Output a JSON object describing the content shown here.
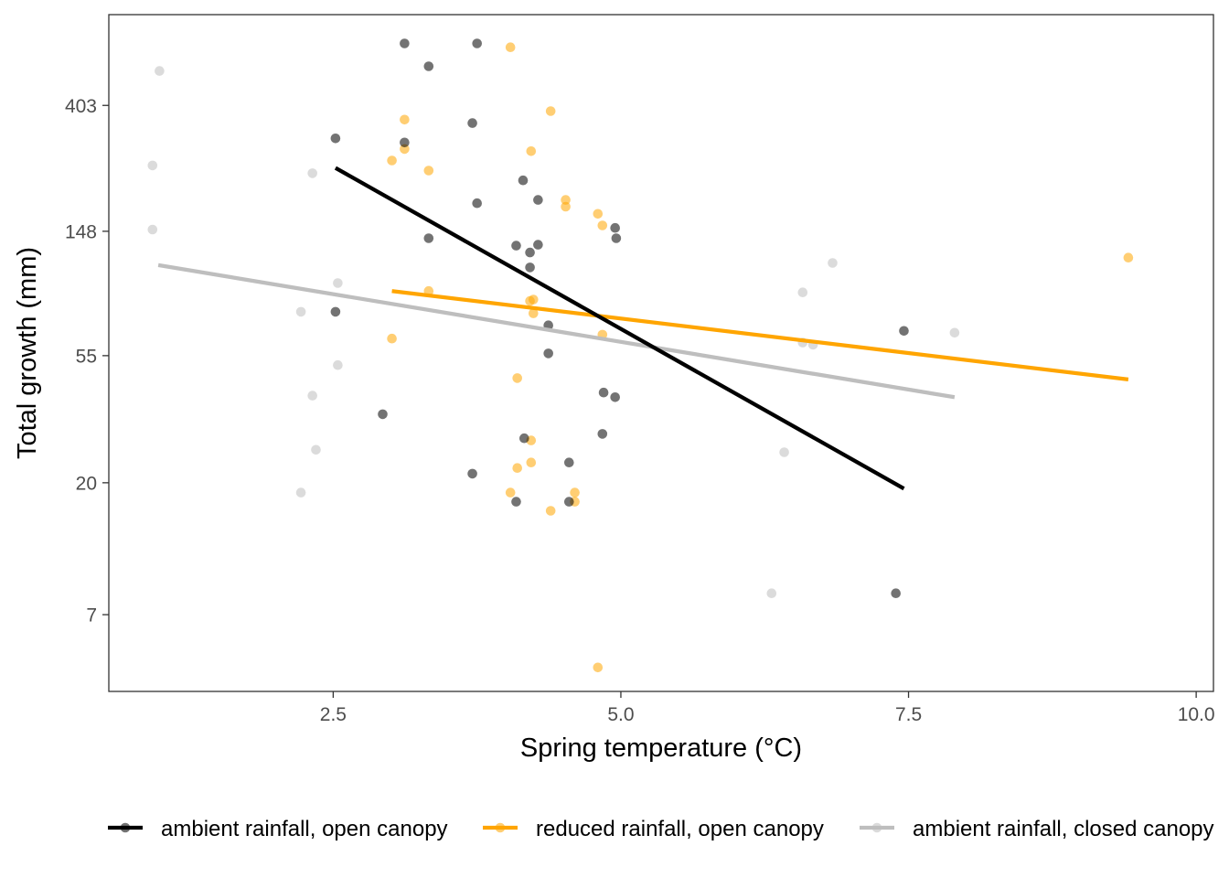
{
  "chart_data": {
    "type": "scatter",
    "xlabel": "Spring temperature (°C)",
    "ylabel": "Total growth (mm)",
    "x_ticks": [
      2.5,
      5.0,
      7.5,
      10.0
    ],
    "x_tick_labels": [
      "2.5",
      "5.0",
      "7.5",
      "10.0"
    ],
    "y_scale": "log",
    "y_ticks": [
      7,
      20,
      55,
      148,
      403
    ],
    "y_tick_labels": [
      "7",
      "20",
      "55",
      "148",
      "403"
    ],
    "xlim": [
      0.55,
      10.15
    ],
    "ylim": [
      3.8,
      830
    ],
    "grid": false,
    "legend_position": "bottom",
    "series": [
      {
        "name": "ambient rainfall, open canopy",
        "color": "#000000",
        "fit_line": [
          [
            2.52,
            245
          ],
          [
            7.46,
            19.1
          ]
        ],
        "points": [
          [
            3.12,
            660
          ],
          [
            3.75,
            660
          ],
          [
            3.33,
            550
          ],
          [
            3.71,
            350
          ],
          [
            2.52,
            310
          ],
          [
            3.12,
            300
          ],
          [
            4.15,
            222
          ],
          [
            4.28,
            190
          ],
          [
            3.75,
            185
          ],
          [
            4.95,
            152
          ],
          [
            4.96,
            140
          ],
          [
            3.33,
            140
          ],
          [
            4.09,
            132
          ],
          [
            4.28,
            133
          ],
          [
            4.21,
            125
          ],
          [
            4.21,
            111
          ],
          [
            2.52,
            78
          ],
          [
            4.37,
            70
          ],
          [
            7.46,
            67
          ],
          [
            4.37,
            56
          ],
          [
            4.85,
            41
          ],
          [
            4.95,
            39.5
          ],
          [
            2.93,
            34.5
          ],
          [
            4.84,
            29.5
          ],
          [
            4.16,
            28.5
          ],
          [
            3.71,
            21.5
          ],
          [
            4.55,
            23.5
          ],
          [
            4.09,
            17.2
          ],
          [
            4.55,
            17.2
          ],
          [
            7.39,
            8.3
          ]
        ]
      },
      {
        "name": "reduced rainfall, open canopy",
        "color": "#FFA500",
        "fit_line": [
          [
            3.01,
            92
          ],
          [
            9.41,
            45.5
          ]
        ],
        "points": [
          [
            4.04,
            640
          ],
          [
            4.39,
            385
          ],
          [
            3.12,
            360
          ],
          [
            4.22,
            280
          ],
          [
            3.12,
            285
          ],
          [
            3.01,
            260
          ],
          [
            3.33,
            240
          ],
          [
            4.52,
            190
          ],
          [
            4.52,
            180
          ],
          [
            4.8,
            170
          ],
          [
            4.84,
            155
          ],
          [
            9.41,
            120
          ],
          [
            3.33,
            92
          ],
          [
            4.21,
            85
          ],
          [
            4.24,
            86
          ],
          [
            4.24,
            77
          ],
          [
            4.84,
            65
          ],
          [
            3.01,
            63
          ],
          [
            4.1,
            46
          ],
          [
            4.22,
            28
          ],
          [
            4.1,
            22.5
          ],
          [
            4.22,
            23.5
          ],
          [
            4.04,
            18.5
          ],
          [
            4.6,
            18.5
          ],
          [
            4.6,
            17.2
          ],
          [
            4.39,
            16.0
          ],
          [
            4.8,
            4.6
          ]
        ]
      },
      {
        "name": "ambient rainfall, closed canopy",
        "color": "#BEBEBE",
        "fit_line": [
          [
            0.98,
            113
          ],
          [
            7.9,
            39.5
          ]
        ],
        "points": [
          [
            0.99,
            530
          ],
          [
            0.93,
            250
          ],
          [
            2.32,
            235
          ],
          [
            0.93,
            150
          ],
          [
            6.84,
            115
          ],
          [
            2.54,
            98
          ],
          [
            6.58,
            91
          ],
          [
            2.22,
            78
          ],
          [
            7.9,
            66
          ],
          [
            6.58,
            61
          ],
          [
            6.67,
            60
          ],
          [
            2.54,
            51
          ],
          [
            2.32,
            40
          ],
          [
            2.35,
            26
          ],
          [
            6.42,
            25.5
          ],
          [
            2.22,
            18.5
          ],
          [
            6.31,
            8.3
          ]
        ]
      }
    ]
  }
}
